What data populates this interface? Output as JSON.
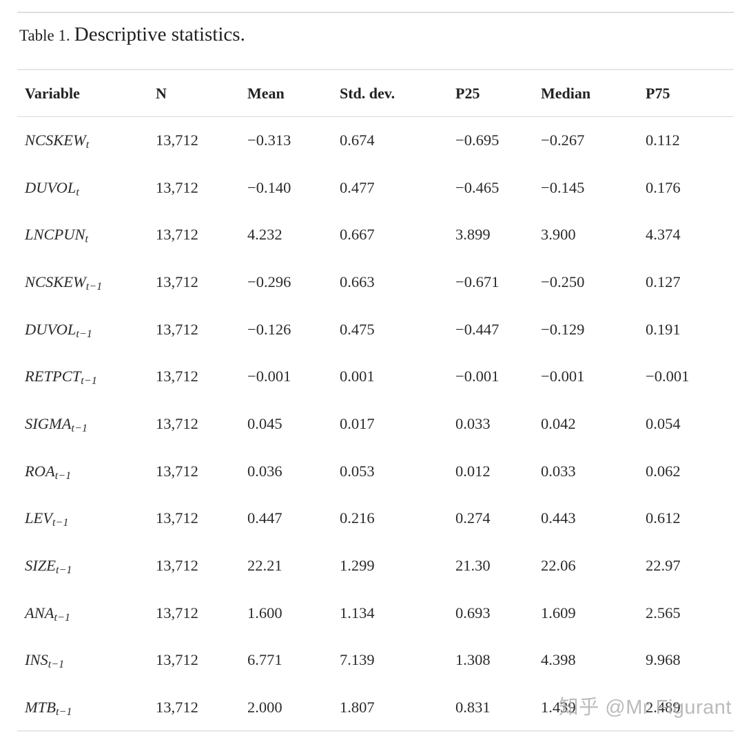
{
  "caption": {
    "label": "Table 1.",
    "title": "Descriptive statistics."
  },
  "table": {
    "columns": [
      "Variable",
      "N",
      "Mean",
      "Std. dev.",
      "P25",
      "Median",
      "P75"
    ],
    "rows": [
      {
        "variable": "NCSKEW",
        "sub": "t",
        "values": [
          "13,712",
          "−0.313",
          "0.674",
          "−0.695",
          "−0.267",
          "0.112"
        ]
      },
      {
        "variable": "DUVOL",
        "sub": "t",
        "values": [
          "13,712",
          "−0.140",
          "0.477",
          "−0.465",
          "−0.145",
          "0.176"
        ]
      },
      {
        "variable": "LNCPUN",
        "sub": "t",
        "values": [
          "13,712",
          "4.232",
          "0.667",
          "3.899",
          "3.900",
          "4.374"
        ]
      },
      {
        "variable": "NCSKEW",
        "sub": "t−1",
        "values": [
          "13,712",
          "−0.296",
          "0.663",
          "−0.671",
          "−0.250",
          "0.127"
        ]
      },
      {
        "variable": "DUVOL",
        "sub": "t−1",
        "values": [
          "13,712",
          "−0.126",
          "0.475",
          "−0.447",
          "−0.129",
          "0.191"
        ]
      },
      {
        "variable": "RETPCT",
        "sub": "t−1",
        "values": [
          "13,712",
          "−0.001",
          "0.001",
          "−0.001",
          "−0.001",
          "−0.001"
        ]
      },
      {
        "variable": "SIGMA",
        "sub": "t−1",
        "values": [
          "13,712",
          "0.045",
          "0.017",
          "0.033",
          "0.042",
          "0.054"
        ]
      },
      {
        "variable": "ROA",
        "sub": "t−1",
        "values": [
          "13,712",
          "0.036",
          "0.053",
          "0.012",
          "0.033",
          "0.062"
        ]
      },
      {
        "variable": "LEV",
        "sub": "t−1",
        "values": [
          "13,712",
          "0.447",
          "0.216",
          "0.274",
          "0.443",
          "0.612"
        ]
      },
      {
        "variable": "SIZE",
        "sub": "t−1",
        "values": [
          "13,712",
          "22.21",
          "1.299",
          "21.30",
          "22.06",
          "22.97"
        ]
      },
      {
        "variable": "ANA",
        "sub": "t−1",
        "values": [
          "13,712",
          "1.600",
          "1.134",
          "0.693",
          "1.609",
          "2.565"
        ]
      },
      {
        "variable": "INS",
        "sub": "t−1",
        "values": [
          "13,712",
          "6.771",
          "7.139",
          "1.308",
          "4.398",
          "9.968"
        ]
      },
      {
        "variable": "MTB",
        "sub": "t−1",
        "values": [
          "13,712",
          "2.000",
          "1.807",
          "0.831",
          "1.439",
          "2.489"
        ]
      }
    ]
  },
  "watermark": {
    "text": "知乎 @Mr Figurant"
  },
  "colors": {
    "text": "#2a2a2a",
    "rule": "#e6e6e4",
    "watermark": "#acacac",
    "background": "#ffffff"
  }
}
